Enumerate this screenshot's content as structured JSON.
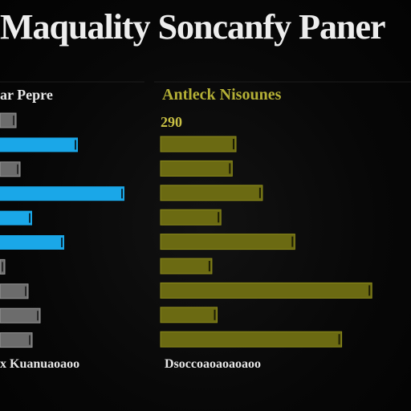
{
  "page": {
    "title": "Maquality Soncanfy Paner"
  },
  "colors": {
    "background": "#050505",
    "left_bar_blue": "#1aa7e8",
    "left_bar_gray": "#6c6c6c",
    "left_bar_outline": "#9a9a9a",
    "right_bar": "#6b6a12",
    "right_bar_outline": "#8d8b1c",
    "panel_line": "#1d1d1d",
    "text": "#e6e6e6",
    "right_header_text": "#b4b036"
  },
  "chart_data": [
    {
      "type": "bar",
      "orientation": "horizontal",
      "header": "ar Pepre",
      "footer": "x Kuanuaoaoo",
      "categories": [
        "",
        "",
        "",
        "",
        "",
        "",
        "",
        "",
        "",
        ""
      ],
      "values": [
        20,
        97,
        25,
        155,
        40,
        80,
        6,
        35,
        50,
        40
      ],
      "xlim": [
        0,
        160
      ],
      "bar_colors": [
        "gray",
        "blue",
        "gray",
        "blue",
        "blue",
        "blue",
        "gray",
        "gray",
        "gray",
        "gray"
      ]
    },
    {
      "type": "bar",
      "orientation": "horizontal",
      "header": "Antleck Nisounes",
      "value_label": "290",
      "footer": "Dsoccoaoaoaoaoo",
      "categories": [
        "",
        "",
        "",
        "",
        "",
        "",
        "",
        "",
        ""
      ],
      "values": [
        100,
        95,
        135,
        80,
        178,
        68,
        280,
        75,
        240
      ],
      "xlim": [
        0,
        300
      ]
    }
  ]
}
